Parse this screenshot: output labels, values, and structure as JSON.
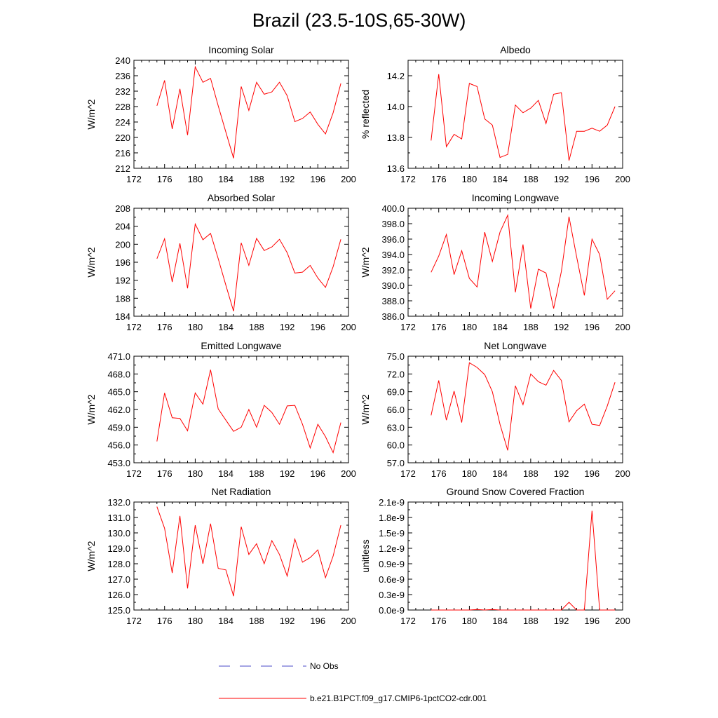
{
  "title": "Brazil (23.5-10S,65-30W)",
  "legend": {
    "obs_label": "No Obs",
    "model_label": "b.e21.B1PCT.f09_g17.CMIP6-1pctCO2-cdr.001",
    "obs_color": "#4a4ac8",
    "model_color": "#ff0000"
  },
  "chart_data": [
    {
      "type": "line",
      "title": "Incoming Solar",
      "xlabel": "",
      "ylabel": "W/m^2",
      "xlim": [
        172,
        200
      ],
      "ylim": [
        212,
        240
      ],
      "xticks": [
        172,
        176,
        180,
        184,
        188,
        192,
        196,
        200
      ],
      "xtick_labels": [
        "172",
        "176",
        "180",
        "184",
        "188",
        "192",
        "196",
        "200"
      ],
      "yticks": [
        212,
        216,
        220,
        224,
        228,
        232,
        236,
        240
      ],
      "ytick_labels": [
        "212",
        "216",
        "220",
        "224",
        "228",
        "232",
        "236",
        "240"
      ],
      "series": [
        {
          "color": "#ff0000",
          "x": [
            175,
            176,
            177,
            178,
            179,
            180,
            181,
            182,
            183,
            184,
            185,
            186,
            187,
            188,
            189,
            190,
            191,
            192,
            193,
            194,
            195,
            196,
            197,
            198,
            199
          ],
          "y": [
            228.2,
            234.8,
            222.2,
            232.6,
            220.6,
            238.3,
            234.3,
            235.3,
            228.2,
            221.4,
            214.6,
            233.2,
            227.0,
            234.3,
            231.2,
            231.8,
            234.3,
            230.8,
            224.1,
            224.9,
            226.6,
            223.4,
            220.9,
            226.4,
            234.0
          ]
        }
      ]
    },
    {
      "type": "line",
      "title": "Albedo",
      "xlabel": "",
      "ylabel": "% reflected",
      "xlim": [
        172,
        200
      ],
      "ylim": [
        13.6,
        14.3
      ],
      "xticks": [
        172,
        176,
        180,
        184,
        188,
        192,
        196,
        200
      ],
      "xtick_labels": [
        "172",
        "176",
        "180",
        "184",
        "188",
        "192",
        "196",
        "200"
      ],
      "yticks": [
        13.6,
        13.8,
        14.0,
        14.2
      ],
      "ytick_labels": [
        "13.6",
        "13.8",
        "14.0",
        "14.2"
      ],
      "series": [
        {
          "color": "#ff0000",
          "x": [
            175,
            176,
            177,
            178,
            179,
            180,
            181,
            182,
            183,
            184,
            185,
            186,
            187,
            188,
            189,
            190,
            191,
            192,
            193,
            194,
            195,
            196,
            197,
            198,
            199
          ],
          "y": [
            13.78,
            14.21,
            13.74,
            13.82,
            13.79,
            14.15,
            14.13,
            13.92,
            13.88,
            13.67,
            13.69,
            14.01,
            13.96,
            13.99,
            14.04,
            13.89,
            14.08,
            14.09,
            13.65,
            13.84,
            13.84,
            13.86,
            13.84,
            13.88,
            14.0
          ]
        }
      ]
    },
    {
      "type": "line",
      "title": "Absorbed Solar",
      "xlabel": "",
      "ylabel": "W/m^2",
      "xlim": [
        172,
        200
      ],
      "ylim": [
        184,
        208
      ],
      "xticks": [
        172,
        176,
        180,
        184,
        188,
        192,
        196,
        200
      ],
      "xtick_labels": [
        "172",
        "176",
        "180",
        "184",
        "188",
        "192",
        "196",
        "200"
      ],
      "yticks": [
        184,
        188,
        192,
        196,
        200,
        204,
        208
      ],
      "ytick_labels": [
        "184",
        "188",
        "192",
        "196",
        "200",
        "204",
        "208"
      ],
      "series": [
        {
          "color": "#ff0000",
          "x": [
            175,
            176,
            177,
            178,
            179,
            180,
            181,
            182,
            183,
            184,
            185,
            186,
            187,
            188,
            189,
            190,
            191,
            192,
            193,
            194,
            195,
            196,
            197,
            198,
            199
          ],
          "y": [
            196.8,
            201.2,
            191.6,
            200.2,
            190.2,
            204.5,
            201.0,
            202.4,
            196.8,
            190.9,
            185.1,
            200.3,
            195.3,
            201.3,
            198.6,
            199.4,
            201.1,
            198.1,
            193.6,
            193.8,
            195.3,
            192.5,
            190.4,
            195.0,
            201.1
          ]
        }
      ]
    },
    {
      "type": "line",
      "title": "Incoming Longwave",
      "xlabel": "",
      "ylabel": "W/m^2",
      "xlim": [
        172,
        200
      ],
      "ylim": [
        386,
        400
      ],
      "xticks": [
        172,
        176,
        180,
        184,
        188,
        192,
        196,
        200
      ],
      "xtick_labels": [
        "172",
        "176",
        "180",
        "184",
        "188",
        "192",
        "196",
        "200"
      ],
      "yticks": [
        386,
        388,
        390,
        392,
        394,
        396,
        398,
        400
      ],
      "ytick_labels": [
        "386.0",
        "388.0",
        "390.0",
        "392.0",
        "394.0",
        "396.0",
        "398.0",
        "400.0"
      ],
      "series": [
        {
          "color": "#ff0000",
          "x": [
            175,
            176,
            177,
            178,
            179,
            180,
            181,
            182,
            183,
            184,
            185,
            186,
            187,
            188,
            189,
            190,
            191,
            192,
            193,
            194,
            195,
            196,
            197,
            198,
            199
          ],
          "y": [
            391.7,
            393.8,
            396.6,
            391.4,
            394.5,
            390.9,
            389.8,
            396.9,
            393.1,
            396.9,
            399.1,
            389.1,
            395.3,
            387.0,
            392.1,
            391.6,
            387.0,
            391.8,
            398.9,
            393.7,
            388.7,
            396.0,
            394.0,
            388.2,
            389.3
          ]
        }
      ]
    },
    {
      "type": "line",
      "title": "Emitted Longwave",
      "xlabel": "",
      "ylabel": "W/m^2",
      "xlim": [
        172,
        200
      ],
      "ylim": [
        453,
        471
      ],
      "xticks": [
        172,
        176,
        180,
        184,
        188,
        192,
        196,
        200
      ],
      "xtick_labels": [
        "172",
        "176",
        "180",
        "184",
        "188",
        "192",
        "196",
        "200"
      ],
      "yticks": [
        453,
        456,
        459,
        462,
        465,
        468,
        471
      ],
      "ytick_labels": [
        "453.0",
        "456.0",
        "459.0",
        "462.0",
        "465.0",
        "468.0",
        "471.0"
      ],
      "series": [
        {
          "color": "#ff0000",
          "x": [
            175,
            176,
            177,
            178,
            179,
            180,
            181,
            182,
            183,
            184,
            185,
            186,
            187,
            188,
            189,
            190,
            191,
            192,
            193,
            194,
            195,
            196,
            197,
            198,
            199
          ],
          "y": [
            456.6,
            464.8,
            460.6,
            460.5,
            458.4,
            464.8,
            462.9,
            468.7,
            462.1,
            460.2,
            458.3,
            459.0,
            462.0,
            459.0,
            462.7,
            461.5,
            459.5,
            462.6,
            462.7,
            459.5,
            455.5,
            459.5,
            457.4,
            454.7,
            459.8
          ]
        }
      ]
    },
    {
      "type": "line",
      "title": "Net Longwave",
      "xlabel": "",
      "ylabel": "W/m^2",
      "xlim": [
        172,
        200
      ],
      "ylim": [
        57,
        75
      ],
      "xticks": [
        172,
        176,
        180,
        184,
        188,
        192,
        196,
        200
      ],
      "xtick_labels": [
        "172",
        "176",
        "180",
        "184",
        "188",
        "192",
        "196",
        "200"
      ],
      "yticks": [
        57,
        60,
        63,
        66,
        69,
        72,
        75
      ],
      "ytick_labels": [
        "57.0",
        "60.0",
        "63.0",
        "66.0",
        "69.0",
        "72.0",
        "75.0"
      ],
      "series": [
        {
          "color": "#ff0000",
          "x": [
            175,
            176,
            177,
            178,
            179,
            180,
            181,
            182,
            183,
            184,
            185,
            186,
            187,
            188,
            189,
            190,
            191,
            192,
            193,
            194,
            195,
            196,
            197,
            198,
            199
          ],
          "y": [
            65.0,
            70.9,
            64.2,
            69.1,
            63.8,
            73.9,
            73.1,
            71.9,
            69.0,
            63.5,
            59.1,
            70.0,
            66.8,
            72.0,
            70.7,
            70.1,
            72.6,
            70.9,
            63.9,
            65.8,
            66.9,
            63.5,
            63.3,
            66.6,
            70.6
          ]
        }
      ]
    },
    {
      "type": "line",
      "title": "Net Radiation",
      "xlabel": "",
      "ylabel": "W/m^2",
      "xlim": [
        172,
        200
      ],
      "ylim": [
        125,
        132
      ],
      "xticks": [
        172,
        176,
        180,
        184,
        188,
        192,
        196,
        200
      ],
      "xtick_labels": [
        "172",
        "176",
        "180",
        "184",
        "188",
        "192",
        "196",
        "200"
      ],
      "yticks": [
        125,
        126,
        127,
        128,
        129,
        130,
        131,
        132
      ],
      "ytick_labels": [
        "125.0",
        "126.0",
        "127.0",
        "128.0",
        "129.0",
        "130.0",
        "131.0",
        "132.0"
      ],
      "series": [
        {
          "color": "#ff0000",
          "x": [
            175,
            176,
            177,
            178,
            179,
            180,
            181,
            182,
            183,
            184,
            185,
            186,
            187,
            188,
            189,
            190,
            191,
            192,
            193,
            194,
            195,
            196,
            197,
            198,
            199
          ],
          "y": [
            131.7,
            130.3,
            127.4,
            131.1,
            126.4,
            130.5,
            128.0,
            130.6,
            127.7,
            127.6,
            125.9,
            130.4,
            128.6,
            129.3,
            128.0,
            129.5,
            128.6,
            127.2,
            129.6,
            128.1,
            128.4,
            128.9,
            127.1,
            128.5,
            130.5
          ]
        }
      ]
    },
    {
      "type": "line",
      "title": "Ground Snow Covered Fraction",
      "xlabel": "",
      "ylabel": "unitless",
      "xlim": [
        172,
        200
      ],
      "ylim": [
        0.0,
        2.1
      ],
      "xticks": [
        172,
        176,
        180,
        184,
        188,
        192,
        196,
        200
      ],
      "xtick_labels": [
        "172",
        "176",
        "180",
        "184",
        "188",
        "192",
        "196",
        "200"
      ],
      "yticks": [
        0.0,
        0.3,
        0.6,
        0.9,
        1.2,
        1.5,
        1.8,
        2.1
      ],
      "ytick_labels": [
        "0.0e-9",
        "0.3e-9",
        "0.6e-9",
        "0.9e-9",
        "1.2e-9",
        "1.5e-9",
        "1.8e-9",
        "2.1e-9"
      ],
      "series": [
        {
          "color": "#ff0000",
          "x": [
            175,
            176,
            177,
            178,
            179,
            180,
            181,
            182,
            183,
            184,
            185,
            186,
            187,
            188,
            189,
            190,
            191,
            192,
            193,
            194,
            195,
            196,
            197,
            198,
            199
          ],
          "y": [
            0.0,
            0.0,
            0.0,
            0.0,
            0.0,
            0.0,
            0.01,
            0.0,
            0.01,
            0.0,
            0.0,
            0.0,
            0.0,
            0.0,
            0.0,
            0.0,
            0.0,
            0.0,
            0.15,
            0.0,
            0.0,
            1.93,
            0.0,
            0.0,
            0.0
          ]
        }
      ]
    }
  ]
}
